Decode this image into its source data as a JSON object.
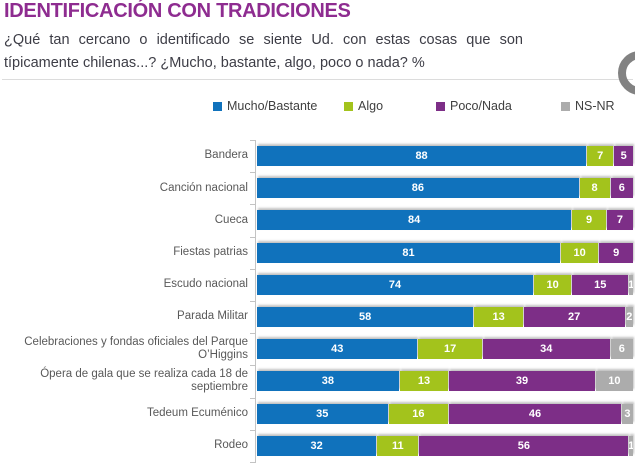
{
  "header": {
    "title": "IDENTIFICACIÓN CON TRADICIONES",
    "subtitle_line1": "¿Qué tan cercano o identificado se siente Ud. con estas cosas que son",
    "subtitle_line2": "típicamente chilenas...? ¿Mucho, bastante, algo, poco o nada? %"
  },
  "colors": {
    "title": "#8E2C90",
    "mucho_bastante": "#1072BC",
    "algo": "#A3C31C",
    "poco_nada": "#7D2E87",
    "ns_nr": "#ACACAC",
    "axis": "#C3C3C3",
    "category_text": "#595959"
  },
  "chart_data": {
    "type": "bar",
    "orientation": "horizontal",
    "stacked": true,
    "xlim": [
      0,
      100
    ],
    "legend_position": "top",
    "value_labels": "inside, white",
    "categories": [
      "Bandera",
      "Canción nacional",
      "Cueca",
      "Fiestas patrias",
      "Escudo nacional",
      "Parada Militar",
      "Celebraciones y fondas oficiales del Parque O’Higgins",
      "Ópera de gala que se realiza cada 18 de septiembre",
      "Tedeum Ecuménico",
      "Rodeo"
    ],
    "series": [
      {
        "name": "Mucho/Bastante",
        "color": "#1072BC",
        "values": [
          88,
          86,
          84,
          81,
          74,
          58,
          43,
          38,
          35,
          32
        ]
      },
      {
        "name": "Algo",
        "color": "#A3C31C",
        "values": [
          7,
          8,
          9,
          10,
          10,
          13,
          17,
          13,
          16,
          11
        ]
      },
      {
        "name": "Poco/Nada",
        "color": "#7D2E87",
        "values": [
          5,
          6,
          7,
          9,
          15,
          27,
          34,
          39,
          46,
          56
        ]
      },
      {
        "name": "NS-NR",
        "color": "#ACACAC",
        "values": [
          0,
          0,
          0,
          0,
          1,
          2,
          6,
          10,
          3,
          1
        ]
      }
    ]
  }
}
